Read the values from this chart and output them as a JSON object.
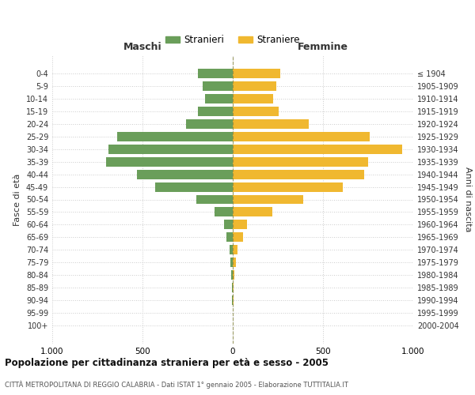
{
  "age_groups": [
    "0-4",
    "5-9",
    "10-14",
    "15-19",
    "20-24",
    "25-29",
    "30-34",
    "35-39",
    "40-44",
    "45-49",
    "50-54",
    "55-59",
    "60-64",
    "65-69",
    "70-74",
    "75-79",
    "80-84",
    "85-89",
    "90-94",
    "95-99",
    "100+"
  ],
  "birth_years": [
    "2000-2004",
    "1995-1999",
    "1990-1994",
    "1985-1989",
    "1980-1984",
    "1975-1979",
    "1970-1974",
    "1965-1969",
    "1960-1964",
    "1955-1959",
    "1950-1954",
    "1945-1949",
    "1940-1944",
    "1935-1939",
    "1930-1934",
    "1925-1929",
    "1920-1924",
    "1915-1919",
    "1910-1914",
    "1905-1909",
    "≤ 1904"
  ],
  "males": [
    195,
    165,
    155,
    195,
    260,
    640,
    690,
    700,
    530,
    430,
    200,
    100,
    50,
    35,
    18,
    12,
    8,
    4,
    3,
    2,
    2
  ],
  "females": [
    265,
    240,
    225,
    255,
    420,
    760,
    940,
    750,
    730,
    610,
    390,
    220,
    80,
    55,
    28,
    18,
    10,
    5,
    3,
    2,
    2
  ],
  "male_color": "#6a9e5a",
  "female_color": "#f0b830",
  "title": "Popolazione per cittadinanza straniera per età e sesso - 2005",
  "subtitle": "CITTÀ METROPOLITANA DI REGGIO CALABRIA - Dati ISTAT 1° gennaio 2005 - Elaborazione TUTTITALIA.IT",
  "legend_male": "Stranieri",
  "legend_female": "Straniere",
  "xlabel_left": "Maschi",
  "xlabel_right": "Femmine",
  "ylabel_left": "Fasce di età",
  "ylabel_right": "Anni di nascita",
  "xlim": 1000,
  "background_color": "#ffffff",
  "grid_color": "#cccccc"
}
